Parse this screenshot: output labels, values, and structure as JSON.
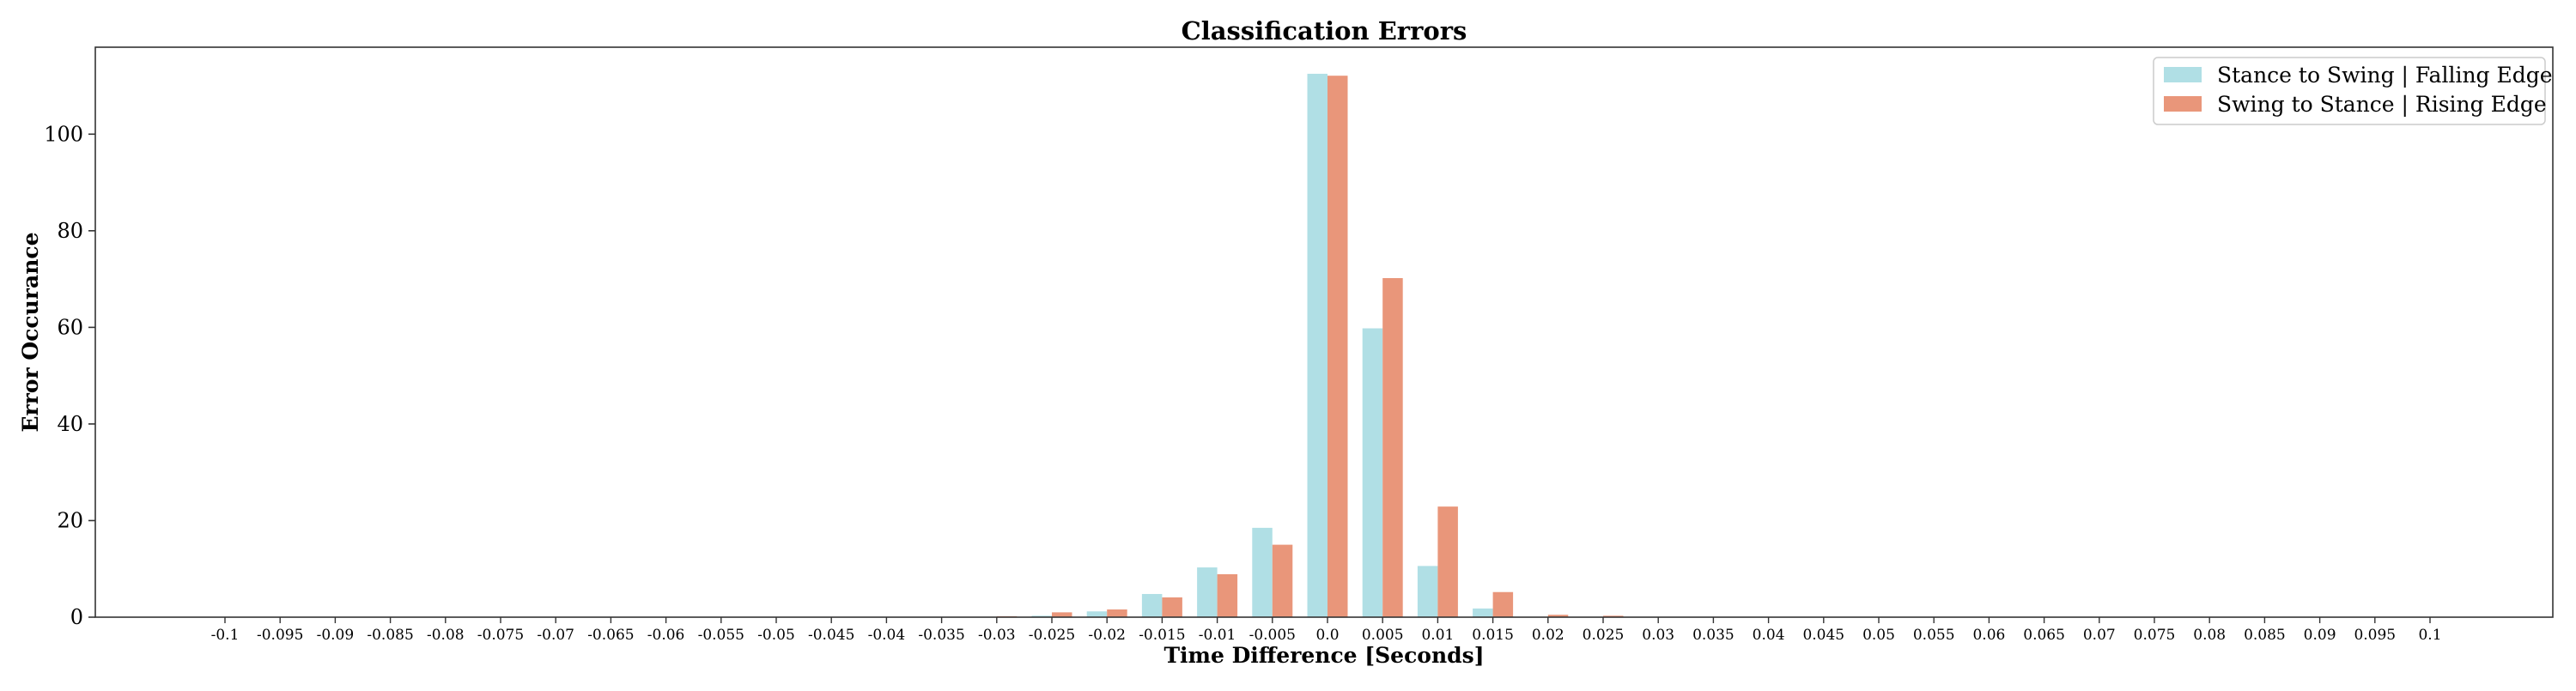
{
  "chart_data": {
    "type": "bar",
    "title": "Classification Errors",
    "xlabel": "Time Difference [Seconds]",
    "ylabel": "Error Occurance",
    "ylim": [
      0,
      118
    ],
    "yticks": [
      0,
      20,
      40,
      60,
      80,
      100
    ],
    "categories": [
      "-0.1",
      "-0.095",
      "-0.09",
      "-0.085",
      "-0.08",
      "-0.075",
      "-0.07",
      "-0.065",
      "-0.06",
      "-0.055",
      "-0.05",
      "-0.045",
      "-0.04",
      "-0.035",
      "-0.03",
      "-0.025",
      "-0.02",
      "-0.015",
      "-0.01",
      "-0.005",
      "0.0",
      "0.005",
      "0.01",
      "0.015",
      "0.02",
      "0.025",
      "0.03",
      "0.035",
      "0.04",
      "0.045",
      "0.05",
      "0.055",
      "0.06",
      "0.065",
      "0.07",
      "0.075",
      "0.08",
      "0.085",
      "0.09",
      "0.095",
      "0.1"
    ],
    "series": [
      {
        "name": "Stance to Swing | Falling Edge",
        "color": "#b0dfe5",
        "values": [
          0,
          0,
          0,
          0,
          0,
          0,
          0,
          0,
          0,
          0,
          0,
          0,
          0,
          0,
          0,
          0.3,
          1.2,
          4.8,
          10.3,
          18.5,
          112.5,
          59.8,
          10.6,
          1.8,
          0,
          0,
          0,
          0,
          0,
          0,
          0,
          0,
          0,
          0,
          0,
          0,
          0,
          0,
          0,
          0,
          0
        ]
      },
      {
        "name": "Swing to Stance | Rising Edge",
        "color": "#e9967a",
        "values": [
          0,
          0,
          0,
          0,
          0,
          0,
          0,
          0,
          0,
          0,
          0,
          0,
          0,
          0,
          0.2,
          1.0,
          1.6,
          4.1,
          8.9,
          15.0,
          112.1,
          70.2,
          22.9,
          5.2,
          0.5,
          0.3,
          0,
          0,
          0,
          0,
          0,
          0,
          0,
          0,
          0,
          0,
          0,
          0,
          0,
          0,
          0
        ]
      }
    ],
    "grid": false,
    "legend_position": "top-right"
  }
}
